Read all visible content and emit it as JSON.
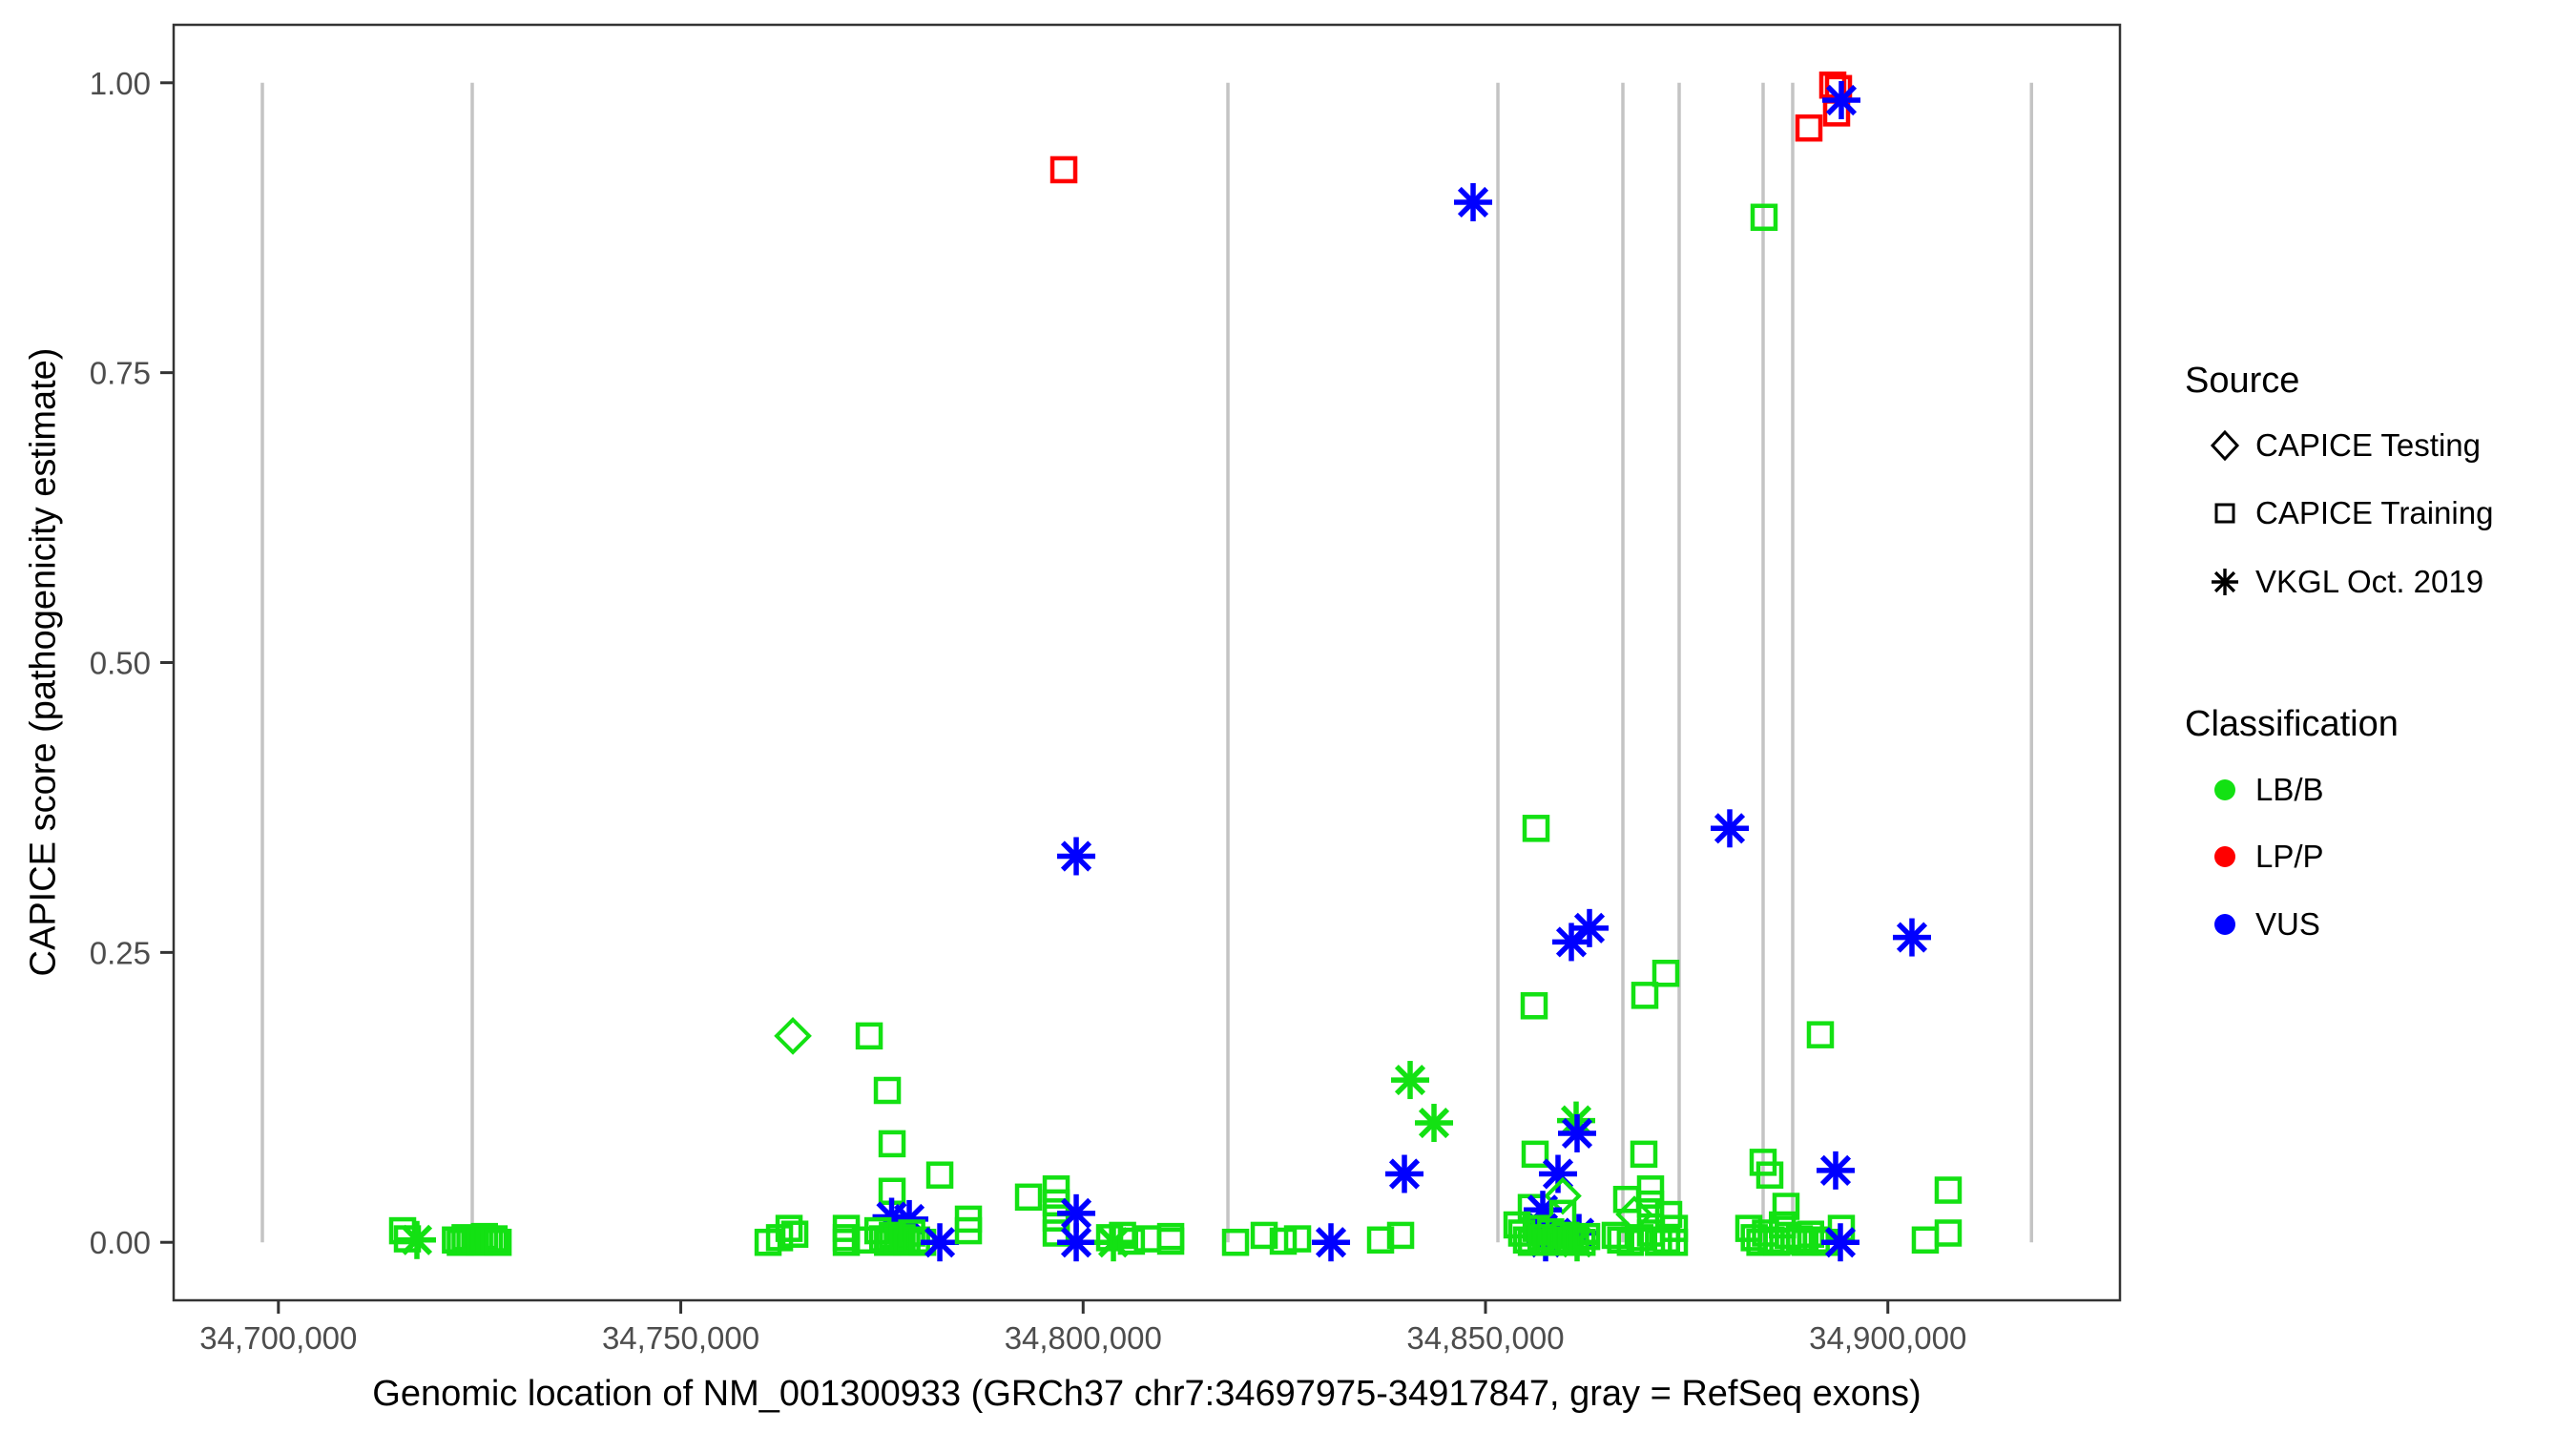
{
  "chart_data": {
    "type": "scatter",
    "title": "",
    "xlabel": "Genomic location of NM_001300933 (GRCh37 chr7:34697975-34917847, gray = RefSeq exons)",
    "ylabel": "CAPICE score (pathogenicity estimate)",
    "x_axis": {
      "min": 34686981,
      "max": 34928841,
      "ticks": [
        34700000,
        34750000,
        34800000,
        34850000,
        34900000
      ],
      "tick_labels": [
        "34,700,000",
        "34,750,000",
        "34,800,000",
        "34,850,000",
        "34,900,000"
      ]
    },
    "y_axis": {
      "min": -0.05,
      "max": 1.05,
      "ticks": [
        0,
        0.25,
        0.5,
        0.75,
        1.0
      ],
      "tick_labels": [
        "0.00",
        "0.25",
        "0.50",
        "0.75",
        "1.00"
      ]
    },
    "grid": "off",
    "legend_position": "right",
    "refseq_exons_bp": [
      34698007,
      34724089,
      34817992,
      34851543,
      34867073,
      34874067,
      34884499,
      34888174,
      34917847
    ],
    "exon_color": "#C4C4C4",
    "panel_border_color": "#333333",
    "axis_text_color": "#4D4D4D",
    "source_codes": {
      "tr": "CAPICE Training",
      "te": "CAPICE Testing",
      "vk": "VKGL Oct. 2019"
    },
    "source_shapes": {
      "tr": "square",
      "te": "diamond",
      "vk": "asterisk"
    },
    "class_codes": {
      "B": "LB/B",
      "P": "LP/P",
      "U": "VUS"
    },
    "class_colors": {
      "B": "#13E113",
      "P": "#FF0000",
      "U": "#0000FF"
    },
    "columns": [
      "position_bp",
      "capice_score",
      "source",
      "classification"
    ],
    "points": [
      [
        34715435,
        0.01,
        "tr",
        "B"
      ],
      [
        34716030,
        0.003,
        "tr",
        "B"
      ],
      [
        34717213,
        0.002,
        "vk",
        "B"
      ],
      [
        34722000,
        0.002,
        "tr",
        "B"
      ],
      [
        34722600,
        0.0,
        "tr",
        "B"
      ],
      [
        34723200,
        0.004,
        "tr",
        "B"
      ],
      [
        34723800,
        0.001,
        "tr",
        "B"
      ],
      [
        34724400,
        0.003,
        "tr",
        "B"
      ],
      [
        34725000,
        0.0,
        "tr",
        "B"
      ],
      [
        34725600,
        0.005,
        "tr",
        "B"
      ],
      [
        34726200,
        0.001,
        "tr",
        "B"
      ],
      [
        34726800,
        0.003,
        "tr",
        "B"
      ],
      [
        34727300,
        0.0,
        "tr",
        "B"
      ],
      [
        34760850,
        0.0,
        "tr",
        "B"
      ],
      [
        34762272,
        0.004,
        "tr",
        "B"
      ],
      [
        34763458,
        0.012,
        "tr",
        "B"
      ],
      [
        34764169,
        0.007,
        "tr",
        "B"
      ],
      [
        34763932,
        0.178,
        "te",
        "B"
      ],
      [
        34773416,
        0.178,
        "tr",
        "B"
      ],
      [
        34775668,
        0.131,
        "tr",
        "B"
      ],
      [
        34776261,
        0.085,
        "tr",
        "B"
      ],
      [
        34782189,
        0.058,
        "tr",
        "B"
      ],
      [
        34776261,
        0.044,
        "tr",
        "B"
      ],
      [
        34776200,
        0.022,
        "vk",
        "U"
      ],
      [
        34778395,
        0.02,
        "vk",
        "U"
      ],
      [
        34770571,
        0.012,
        "tr",
        "B"
      ],
      [
        34770571,
        0.004,
        "tr",
        "B"
      ],
      [
        34770571,
        0.0,
        "tr",
        "B"
      ],
      [
        34772942,
        0.002,
        "tr",
        "B"
      ],
      [
        34774500,
        0.01,
        "tr",
        "B"
      ],
      [
        34775100,
        0.003,
        "tr",
        "B"
      ],
      [
        34775700,
        0.0,
        "tr",
        "B"
      ],
      [
        34776300,
        0.006,
        "tr",
        "B"
      ],
      [
        34776900,
        0.001,
        "tr",
        "B"
      ],
      [
        34777500,
        0.004,
        "tr",
        "B"
      ],
      [
        34778100,
        0.0,
        "tr",
        "B"
      ],
      [
        34778700,
        0.008,
        "tr",
        "B"
      ],
      [
        34779300,
        0.002,
        "tr",
        "B"
      ],
      [
        34780055,
        0.0,
        "tr",
        "B"
      ],
      [
        34782189,
        0.0,
        "vk",
        "U"
      ],
      [
        34785745,
        0.02,
        "tr",
        "B"
      ],
      [
        34785745,
        0.01,
        "tr",
        "B"
      ],
      [
        34793214,
        0.039,
        "tr",
        "B"
      ],
      [
        34796652,
        0.046,
        "tr",
        "B"
      ],
      [
        34796652,
        0.034,
        "tr",
        "B"
      ],
      [
        34796652,
        0.021,
        "tr",
        "B"
      ],
      [
        34796652,
        0.008,
        "tr",
        "B"
      ],
      [
        34799142,
        0.025,
        "vk",
        "U"
      ],
      [
        34799142,
        0.0,
        "vk",
        "U"
      ],
      [
        34803291,
        0.004,
        "tr",
        "B"
      ],
      [
        34803765,
        0.0,
        "vk",
        "B"
      ],
      [
        34804900,
        0.006,
        "tr",
        "B"
      ],
      [
        34806000,
        0.001,
        "tr",
        "B"
      ],
      [
        34808000,
        0.003,
        "tr",
        "B"
      ],
      [
        34810879,
        0.005,
        "tr",
        "B"
      ],
      [
        34810879,
        0.001,
        "tr",
        "B"
      ],
      [
        34797600,
        0.925,
        "tr",
        "P"
      ],
      [
        34799142,
        0.333,
        "vk",
        "U"
      ],
      [
        34818940,
        0.0,
        "tr",
        "B"
      ],
      [
        34822497,
        0.006,
        "tr",
        "B"
      ],
      [
        34824868,
        0.001,
        "tr",
        "B"
      ],
      [
        34826646,
        0.003,
        "tr",
        "B"
      ],
      [
        34830796,
        0.0,
        "vk",
        "U"
      ],
      [
        34836961,
        0.002,
        "tr",
        "B"
      ],
      [
        34839451,
        0.006,
        "tr",
        "B"
      ],
      [
        34840636,
        0.14,
        "vk",
        "B"
      ],
      [
        34843600,
        0.103,
        "vk",
        "B"
      ],
      [
        34839925,
        0.059,
        "vk",
        "U"
      ],
      [
        34848461,
        0.897,
        "vk",
        "U"
      ],
      [
        34856285,
        0.357,
        "tr",
        "B"
      ],
      [
        34862923,
        0.271,
        "vk",
        "U"
      ],
      [
        34860671,
        0.259,
        "vk",
        "U"
      ],
      [
        34856048,
        0.204,
        "tr",
        "B"
      ],
      [
        34861264,
        0.105,
        "vk",
        "B"
      ],
      [
        34861382,
        0.094,
        "vk",
        "U"
      ],
      [
        34856166,
        0.076,
        "tr",
        "B"
      ],
      [
        34859011,
        0.059,
        "vk",
        "U"
      ],
      [
        34859604,
        0.04,
        "te",
        "B"
      ],
      [
        34855692,
        0.03,
        "tr",
        "B"
      ],
      [
        34857115,
        0.028,
        "vk",
        "U"
      ],
      [
        34859604,
        0.025,
        "tr",
        "B"
      ],
      [
        34857115,
        0.012,
        "vk",
        "U"
      ],
      [
        34861619,
        0.008,
        "vk",
        "U"
      ],
      [
        34857470,
        0.0,
        "vk",
        "U"
      ],
      [
        34861382,
        0.0,
        "vk",
        "B"
      ],
      [
        34853914,
        0.015,
        "tr",
        "B"
      ],
      [
        34854500,
        0.008,
        "tr",
        "B"
      ],
      [
        34855100,
        0.002,
        "tr",
        "B"
      ],
      [
        34855700,
        0.0,
        "tr",
        "B"
      ],
      [
        34856300,
        0.012,
        "tr",
        "B"
      ],
      [
        34856900,
        0.004,
        "tr",
        "B"
      ],
      [
        34857500,
        0.0,
        "tr",
        "B"
      ],
      [
        34858100,
        0.009,
        "tr",
        "B"
      ],
      [
        34858700,
        0.002,
        "tr",
        "B"
      ],
      [
        34859300,
        0.0,
        "tr",
        "B"
      ],
      [
        34860000,
        0.006,
        "tr",
        "B"
      ],
      [
        34860600,
        0.001,
        "tr",
        "B"
      ],
      [
        34861200,
        0.003,
        "tr",
        "B"
      ],
      [
        34862000,
        0.0,
        "tr",
        "B"
      ],
      [
        34862569,
        0.005,
        "tr",
        "B"
      ],
      [
        34866124,
        0.006,
        "tr",
        "B"
      ],
      [
        34869681,
        0.076,
        "tr",
        "B"
      ],
      [
        34869799,
        0.213,
        "tr",
        "B"
      ],
      [
        34872407,
        0.232,
        "tr",
        "B"
      ],
      [
        34868495,
        0.024,
        "te",
        "B"
      ],
      [
        34867547,
        0.037,
        "tr",
        "B"
      ],
      [
        34870510,
        0.046,
        "tr",
        "B"
      ],
      [
        34870510,
        0.033,
        "tr",
        "B"
      ],
      [
        34870510,
        0.021,
        "tr",
        "B"
      ],
      [
        34870510,
        0.008,
        "tr",
        "B"
      ],
      [
        34872762,
        0.024,
        "tr",
        "B"
      ],
      [
        34873474,
        0.012,
        "tr",
        "B"
      ],
      [
        34866800,
        0.002,
        "tr",
        "B"
      ],
      [
        34868000,
        0.0,
        "tr",
        "B"
      ],
      [
        34869200,
        0.004,
        "tr",
        "B"
      ],
      [
        34871500,
        0.0,
        "tr",
        "B"
      ],
      [
        34872500,
        0.002,
        "tr",
        "B"
      ],
      [
        34873474,
        0.0,
        "tr",
        "B"
      ],
      [
        34880350,
        0.357,
        "vk",
        "U"
      ],
      [
        34884618,
        0.884,
        "tr",
        "B"
      ],
      [
        34884499,
        0.069,
        "tr",
        "B"
      ],
      [
        34885329,
        0.058,
        "tr",
        "B"
      ],
      [
        34893509,
        0.062,
        "vk",
        "U"
      ],
      [
        34887344,
        0.031,
        "tr",
        "B"
      ],
      [
        34882721,
        0.012,
        "tr",
        "B"
      ],
      [
        34883400,
        0.004,
        "tr",
        "B"
      ],
      [
        34884100,
        0.0,
        "tr",
        "B"
      ],
      [
        34884800,
        0.008,
        "tr",
        "B"
      ],
      [
        34885500,
        0.002,
        "tr",
        "B"
      ],
      [
        34886200,
        0.0,
        "tr",
        "B"
      ],
      [
        34886900,
        0.015,
        "tr",
        "B"
      ],
      [
        34887600,
        0.006,
        "tr",
        "B"
      ],
      [
        34888300,
        0.001,
        "tr",
        "B"
      ],
      [
        34889000,
        0.003,
        "tr",
        "B"
      ],
      [
        34889700,
        0.0,
        "tr",
        "B"
      ],
      [
        34890400,
        0.007,
        "tr",
        "B"
      ],
      [
        34891100,
        0.002,
        "tr",
        "B"
      ],
      [
        34892205,
        0.0,
        "tr",
        "B"
      ],
      [
        34894220,
        0.012,
        "tr",
        "B"
      ],
      [
        34894102,
        0.0,
        "vk",
        "U"
      ],
      [
        34891612,
        0.179,
        "tr",
        "B"
      ],
      [
        34893153,
        0.998,
        "tr",
        "P"
      ],
      [
        34893865,
        0.995,
        "tr",
        "P"
      ],
      [
        34893628,
        0.974,
        "tr",
        "P"
      ],
      [
        34890190,
        0.961,
        "tr",
        "P"
      ],
      [
        34894220,
        0.985,
        "vk",
        "U"
      ],
      [
        34902993,
        0.263,
        "vk",
        "U"
      ],
      [
        34904653,
        0.002,
        "tr",
        "B"
      ],
      [
        34907498,
        0.045,
        "tr",
        "B"
      ],
      [
        34907498,
        0.008,
        "tr",
        "B"
      ]
    ]
  },
  "axes": {
    "x_title": "Genomic location of NM_001300933 (GRCh37 chr7:34697975-34917847, gray = RefSeq exons)",
    "y_title": "CAPICE score (pathogenicity estimate)"
  },
  "legend": {
    "source": {
      "title": "Source",
      "items": [
        {
          "label": "CAPICE Testing",
          "shape": "diamond"
        },
        {
          "label": "CAPICE Training",
          "shape": "square"
        },
        {
          "label": "VKGL Oct. 2019",
          "shape": "asterisk"
        }
      ]
    },
    "classification": {
      "title": "Classification",
      "items": [
        {
          "label": "LB/B",
          "color": "#13E113"
        },
        {
          "label": "LP/P",
          "color": "#FF0000"
        },
        {
          "label": "VUS",
          "color": "#0000FF"
        }
      ]
    }
  }
}
